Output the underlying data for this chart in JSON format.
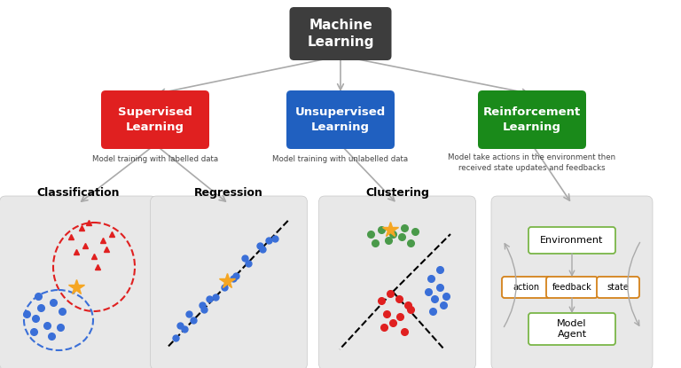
{
  "bg_color": "#ffffff",
  "panel_bg": "#e8e8e8",
  "ml_box": {
    "text": "Machine\nLearning",
    "color": "#3d3d3d",
    "text_color": "#ffffff"
  },
  "nodes": [
    {
      "text": "Supervised\nLearning",
      "color": "#e02020",
      "text_color": "#ffffff",
      "desc": "Model training with labelled data"
    },
    {
      "text": "Unsupervised\nLearning",
      "color": "#2060c0",
      "text_color": "#ffffff",
      "desc": "Model training with unlabelled data"
    },
    {
      "text": "Reinforcement\nLearning",
      "color": "#1a8a1a",
      "text_color": "#ffffff",
      "desc": "Model take actions in the environment then\nreceived state updates and feedbacks"
    }
  ],
  "subtitles": [
    "Classification",
    "Regression",
    "Clustering"
  ],
  "orange_star": "#f5a623",
  "red_color": "#e02020",
  "blue_color": "#3a6fd8",
  "green_color": "#4a9a4a",
  "arrow_color": "#aaaaaa",
  "green_ec": "#7ab648",
  "orange_ec": "#d4821a"
}
